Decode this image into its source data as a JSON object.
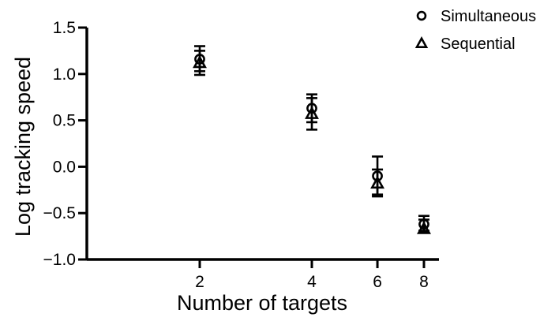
{
  "chart_data": {
    "type": "scatter",
    "xlabel": "Number of targets",
    "ylabel": "Log tracking speed",
    "x_scale": "log",
    "xlim": [
      1.58,
      8.5
    ],
    "ylim": [
      -1.0,
      1.5
    ],
    "x_ticks": [
      "2",
      "4",
      "6",
      "8"
    ],
    "y_ticks": [
      "1.5",
      "1.0",
      "0.5",
      "0.0",
      "−0.5",
      "−1.0"
    ],
    "grid": false,
    "legend_position": "top-right",
    "series": [
      {
        "name": "Simultaneous",
        "marker": "circle",
        "points": [
          {
            "x": 2,
            "y": 1.16,
            "err_low": 1.03,
            "err_high": 1.3
          },
          {
            "x": 4,
            "y": 0.63,
            "err_low": 0.48,
            "err_high": 0.78
          },
          {
            "x": 6,
            "y": -0.1,
            "err_low": -0.3,
            "err_high": 0.11
          },
          {
            "x": 8,
            "y": -0.62,
            "err_low": -0.69,
            "err_high": -0.53
          }
        ]
      },
      {
        "name": "Sequential",
        "marker": "triangle",
        "points": [
          {
            "x": 2,
            "y": 1.12,
            "err_low": 0.99,
            "err_high": 1.25
          },
          {
            "x": 4,
            "y": 0.57,
            "err_low": 0.4,
            "err_high": 0.74
          },
          {
            "x": 6,
            "y": -0.18,
            "err_low": -0.32,
            "err_high": -0.03
          },
          {
            "x": 8,
            "y": -0.67,
            "err_low": -0.7,
            "err_high": -0.57
          }
        ]
      }
    ]
  }
}
